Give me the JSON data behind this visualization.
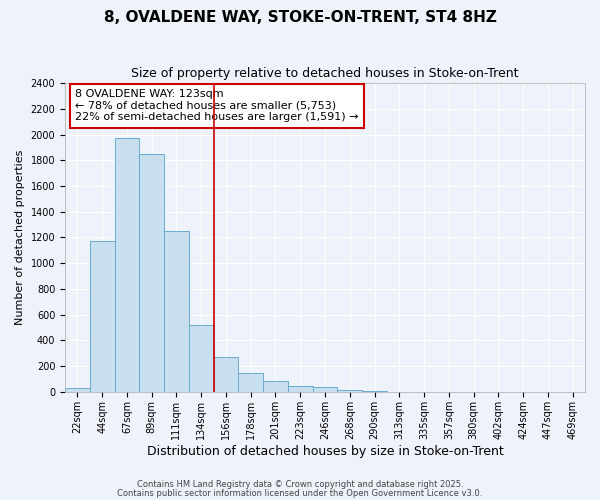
{
  "title": "8, OVALDENE WAY, STOKE-ON-TRENT, ST4 8HZ",
  "subtitle": "Size of property relative to detached houses in Stoke-on-Trent",
  "xlabel": "Distribution of detached houses by size in Stoke-on-Trent",
  "ylabel": "Number of detached properties",
  "bin_labels": [
    "22sqm",
    "44sqm",
    "67sqm",
    "89sqm",
    "111sqm",
    "134sqm",
    "156sqm",
    "178sqm",
    "201sqm",
    "223sqm",
    "246sqm",
    "268sqm",
    "290sqm",
    "313sqm",
    "335sqm",
    "357sqm",
    "380sqm",
    "402sqm",
    "424sqm",
    "447sqm",
    "469sqm"
  ],
  "bar_values": [
    30,
    1170,
    1970,
    1850,
    1250,
    520,
    275,
    150,
    85,
    45,
    40,
    15,
    5,
    2,
    1,
    1,
    0,
    0,
    0,
    0,
    0
  ],
  "bar_color": "#c8dff0",
  "bar_edge_color": "#6aaace",
  "vline_x": 5.5,
  "vline_color": "#cc0000",
  "annotation_line1": "8 OVALDENE WAY: 123sqm",
  "annotation_line2": "← 78% of detached houses are smaller (5,753)",
  "annotation_line3": "22% of semi-detached houses are larger (1,591) →",
  "annotation_box_color": "#ffffff",
  "annotation_box_edge": "#cc0000",
  "ylim": [
    0,
    2400
  ],
  "yticks": [
    0,
    200,
    400,
    600,
    800,
    1000,
    1200,
    1400,
    1600,
    1800,
    2000,
    2200,
    2400
  ],
  "background_color": "#eef2fa",
  "footnote1": "Contains HM Land Registry data © Crown copyright and database right 2025.",
  "footnote2": "Contains public sector information licensed under the Open Government Licence v3.0.",
  "title_fontsize": 11,
  "subtitle_fontsize": 9,
  "xlabel_fontsize": 9,
  "ylabel_fontsize": 8,
  "tick_fontsize": 7,
  "annotation_fontsize": 8,
  "footnote_fontsize": 6
}
